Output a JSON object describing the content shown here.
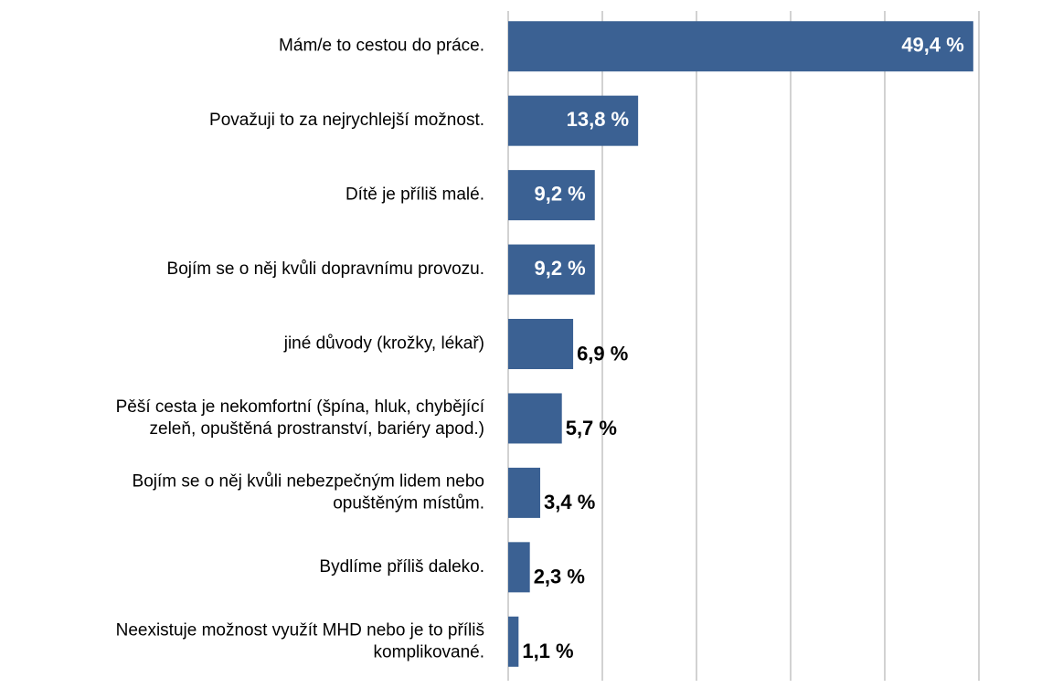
{
  "chart_data": {
    "type": "bar",
    "orientation": "horizontal",
    "categories": [
      "Mám/e to cestou do práce.",
      "Považuji to za nejrychlejší možnost.",
      "Dítě je příliš malé.",
      "Bojím se o něj kvůli dopravnímu provozu.",
      "jiné důvody (krožky, lékař)",
      "Pěší cesta je nekomfortní (špína, hluk, chybějící\nzeleň, opuštěná prostranství, bariéry apod.)",
      "Bojím se o něj kvůli nebezpečným lidem nebo\nopuštěným místům.",
      "Bydlíme příliš daleko.",
      "Neexistuje možnost využít MHD nebo je to příliš\nkomplikované."
    ],
    "values": [
      49.4,
      13.8,
      9.2,
      9.2,
      6.9,
      5.7,
      3.4,
      2.3,
      1.1
    ],
    "value_labels": [
      "49,4 %",
      "13,8 %",
      "9,2 %",
      "9,2 %",
      "6,9 %",
      "5,7 %",
      "3,4 %",
      "2,3 %",
      "1,1 %"
    ],
    "color": "#3b6193",
    "xlim": [
      0,
      50
    ],
    "xticks": [
      0,
      10,
      20,
      30,
      40,
      50
    ],
    "grid": true
  }
}
